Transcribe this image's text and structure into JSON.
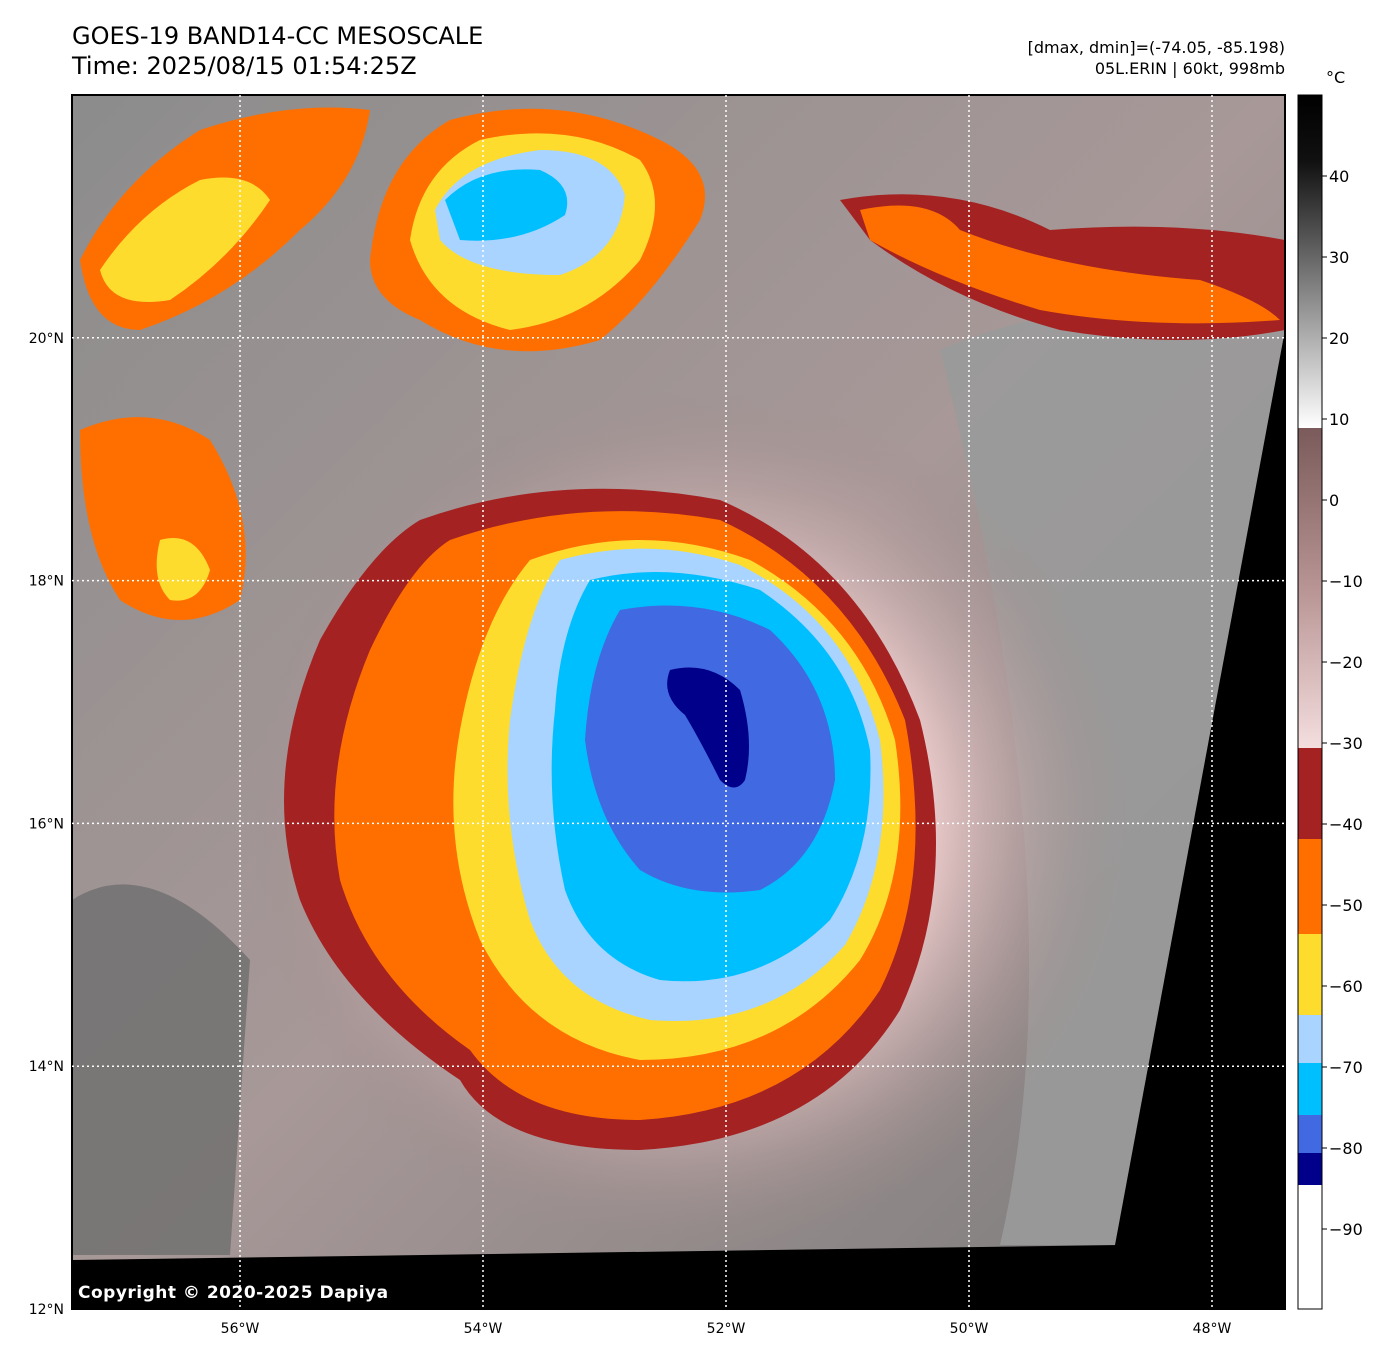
{
  "header": {
    "title": "GOES-19 BAND14-CC MESOSCALE",
    "time": "Time: 2025/08/15 01:54:25Z",
    "dminmax": "[dmax, dmin]=(-74.05, -85.198)",
    "storm": "05L.ERIN | 60kt, 998mb"
  },
  "map": {
    "lat_labels": [
      "20°N",
      "18°N",
      "16°N",
      "14°N",
      "12°N"
    ],
    "lon_labels": [
      "56°W",
      "54°W",
      "52°W",
      "50°W",
      "48°W"
    ],
    "lat_values": [
      20,
      18,
      16,
      14,
      12
    ],
    "lon_values": [
      -56,
      -54,
      -52,
      -50,
      -48
    ],
    "copyright": "Copyright © 2020-2025 Dapiya"
  },
  "colorbar": {
    "unit": "°C",
    "ticks": [
      40,
      30,
      20,
      10,
      0,
      -10,
      -20,
      -30,
      -40,
      -50,
      -60,
      -70,
      -80,
      -90
    ],
    "tick_labels": [
      "40",
      "30",
      "20",
      "10",
      "0",
      "−10",
      "−20",
      "−30",
      "−40",
      "−50",
      "−60",
      "−70",
      "−80",
      "−90"
    ],
    "colors": {
      "below_minus80": "#00008b",
      "minus80_minus75": "#4169e1",
      "minus75_minus65": "#00bfff",
      "minus65_minus60": "#a8d4ff",
      "minus60_minus50": "#fddc2e",
      "minus50_minus40": "#ff6f00",
      "minus40_minus30": "#a52222",
      "warm_top": "#000000"
    }
  }
}
